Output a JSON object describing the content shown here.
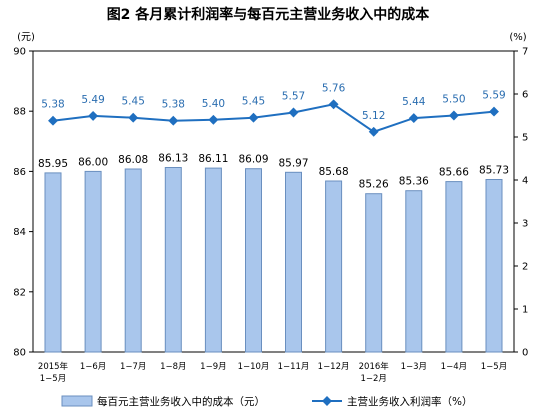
{
  "chart_data": {
    "type": "bar+line",
    "title": "图2 各月累计利润率与每百元主营业务收入中的成本",
    "left_unit": "(元)",
    "right_unit": "(%)",
    "categories": [
      [
        "2015年",
        "1−5月"
      ],
      [
        "1−6月"
      ],
      [
        "1−7月"
      ],
      [
        "1−8月"
      ],
      [
        "1−9月"
      ],
      [
        "1−10月"
      ],
      [
        "1−11月"
      ],
      [
        "1−12月"
      ],
      [
        "2016年",
        "1−2月"
      ],
      [
        "1−3月"
      ],
      [
        "1−4月"
      ],
      [
        "1−5月"
      ]
    ],
    "bar_series": {
      "name": "每百元主营业务收入中的成本（元）",
      "values": [
        85.95,
        86.0,
        86.08,
        86.13,
        86.11,
        86.09,
        85.97,
        85.68,
        85.26,
        85.36,
        85.66,
        85.73
      ],
      "labels": [
        "85.95",
        "86.00",
        "86.08",
        "86.13",
        "86.11",
        "86.09",
        "85.97",
        "85.68",
        "85.26",
        "85.36",
        "85.66",
        "85.73"
      ],
      "color": "#a9c6ec",
      "stroke": "#6a8fbf"
    },
    "line_series": {
      "name": "主营业务收入利润率（%）",
      "values": [
        5.38,
        5.49,
        5.45,
        5.38,
        5.4,
        5.45,
        5.57,
        5.76,
        5.12,
        5.44,
        5.5,
        5.59
      ],
      "labels": [
        "5.38",
        "5.49",
        "5.45",
        "5.38",
        "5.40",
        "5.45",
        "5.57",
        "5.76",
        "5.12",
        "5.44",
        "5.50",
        "5.59"
      ],
      "color": "#1f6fc0"
    },
    "left_axis": {
      "min": 80,
      "max": 90,
      "ticks": [
        "80",
        "82",
        "84",
        "86",
        "88",
        "90"
      ]
    },
    "right_axis": {
      "min": 0,
      "max": 7,
      "ticks": [
        "0",
        "1",
        "2",
        "3",
        "4",
        "5",
        "6",
        "7"
      ]
    },
    "legend_position": "bottom",
    "grid": false
  }
}
